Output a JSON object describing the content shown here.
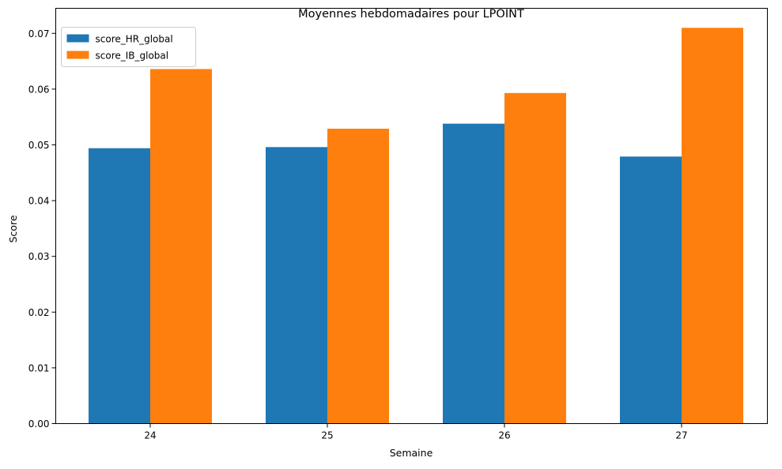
{
  "chart_data": {
    "type": "bar",
    "title": "Moyennes hebdomadaires pour LPOINT",
    "xlabel": "Semaine",
    "ylabel": "Score",
    "categories": [
      "24",
      "25",
      "26",
      "27"
    ],
    "series": [
      {
        "name": "score_HR_global",
        "color": "#1f77b4",
        "values": [
          0.0494,
          0.0496,
          0.0538,
          0.0479
        ]
      },
      {
        "name": "score_IB_global",
        "color": "#ff7f0e",
        "values": [
          0.0636,
          0.0529,
          0.0593,
          0.071
        ]
      }
    ],
    "ylim": [
      0,
      0.0745
    ],
    "yticks": [
      "0.00",
      "0.01",
      "0.02",
      "0.03",
      "0.04",
      "0.05",
      "0.06",
      "0.07"
    ],
    "legend_position": "top-left",
    "grid": false
  }
}
